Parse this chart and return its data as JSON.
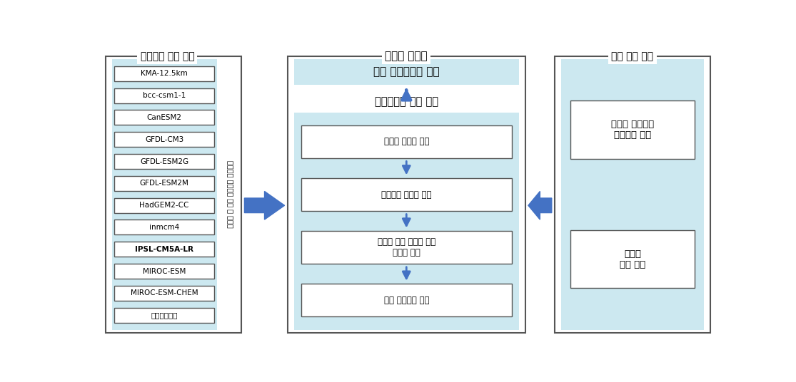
{
  "fig_width": 11.15,
  "fig_height": 5.36,
  "bg_color": "#ffffff",
  "light_blue": "#cce8f0",
  "box_bg": "#ffffff",
  "box_border": "#555555",
  "arrow_color": "#4472c4",
  "dark_text": "#000000",
  "section_border": "#555555",
  "panel1_title": "기후변화 자료 처리",
  "panel2_title": "저수지 모델링",
  "panel3_title": "유역 특성 분석",
  "panel1_items": [
    "KMA-12.5km",
    "bcc-csm1-1",
    "CanESM2",
    "GFDL-CM3",
    "GFDL-ESM2G",
    "GFDL-ESM2M",
    "HadGEM2-CC",
    "inmcm4",
    "IPSL-CM5A-LR",
    "MIROC-ESM",
    "MIROC-ESM-CHEM",
    "기상관측자료"
  ],
  "panel1_bold_item": "IPSL-CM5A-LR",
  "panel2_top_label": "전체 저수지로의 확장",
  "panel2_mid_label": "대표유역을 통한 평가",
  "panel2_boxes": [
    "저수지 유입량 모의",
    "관개용수 수요량 모의",
    "저수지 모의 운영을 통한\n저수율 예측",
    "농업 가뭄지표 제시"
  ],
  "panel3_boxes": [
    "저수지 관개지구\n공간자료 분석",
    "저수지\n군집 분석"
  ],
  "vertical_label": "기후변화 시나리오 분석 및 전처리"
}
